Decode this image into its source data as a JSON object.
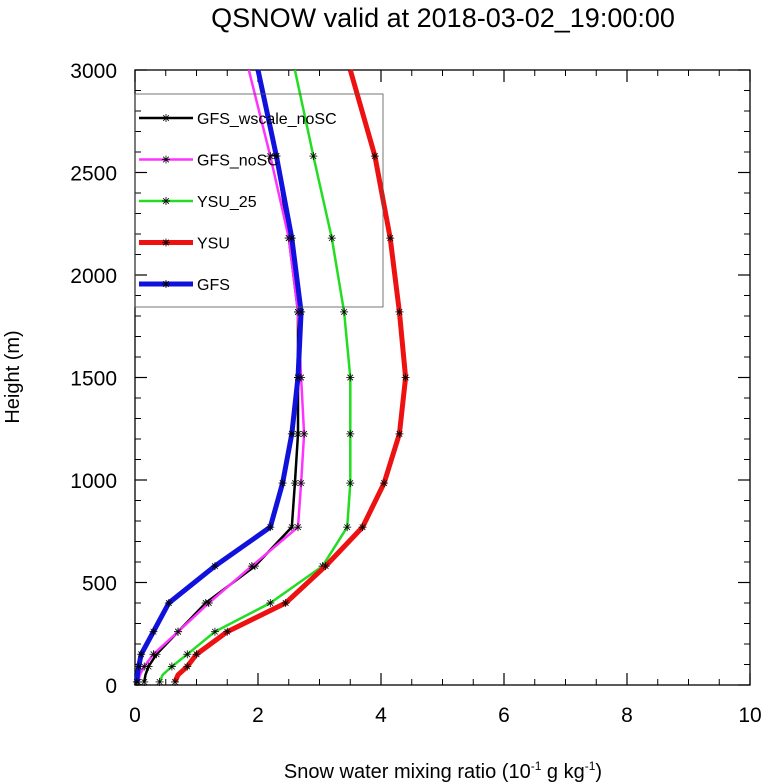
{
  "chart_data": {
    "type": "line",
    "title": "QSNOW valid at 2018-03-02_19:00:00",
    "xlabel": {
      "prefix": "Snow water mixing ratio (10",
      "exp1": "-1",
      "middle": " g kg",
      "exp2": "-1",
      "suffix": ")"
    },
    "ylabel": "Height (m)",
    "xlim": [
      0,
      10
    ],
    "ylim": [
      0,
      3000
    ],
    "x_ticks": [
      0,
      2,
      4,
      6,
      8,
      10
    ],
    "y_ticks": [
      0,
      500,
      1000,
      1500,
      2000,
      2500,
      3000
    ],
    "x_tick_labels": [
      "0",
      "2",
      "4",
      "6",
      "8",
      "10"
    ],
    "y_tick_labels": [
      "0",
      "500",
      "1000",
      "1500",
      "2000",
      "2500",
      "3000"
    ],
    "legend_position": "top-left",
    "heights": [
      15,
      50,
      90,
      150,
      260,
      400,
      580,
      770,
      985,
      1225,
      1500,
      1820,
      2180,
      2580,
      3000
    ],
    "series": [
      {
        "name": "GFS_wscale_noSC",
        "color": "#000000",
        "width": 2.5,
        "values": [
          0.15,
          0.17,
          0.22,
          0.35,
          0.7,
          1.15,
          1.95,
          2.55,
          2.6,
          2.65,
          2.65,
          2.65,
          2.5,
          2.3,
          2.0
        ]
      },
      {
        "name": "GFS_noSC",
        "color": "#ff33ff",
        "width": 2.5,
        "values": [
          0.05,
          0.08,
          0.15,
          0.3,
          0.7,
          1.2,
          1.9,
          2.65,
          2.7,
          2.75,
          2.7,
          2.65,
          2.5,
          2.2,
          1.85
        ]
      },
      {
        "name": "YSU_25",
        "color": "#22dd22",
        "width": 2.5,
        "values": [
          0.4,
          0.45,
          0.6,
          0.85,
          1.3,
          2.2,
          3.05,
          3.45,
          3.5,
          3.5,
          3.5,
          3.4,
          3.2,
          2.9,
          2.6
        ]
      },
      {
        "name": "YSU",
        "color": "#ee1111",
        "width": 5,
        "values": [
          0.65,
          0.7,
          0.85,
          1.0,
          1.5,
          2.45,
          3.1,
          3.7,
          4.05,
          4.3,
          4.4,
          4.3,
          4.15,
          3.9,
          3.5
        ]
      },
      {
        "name": "GFS",
        "color": "#1111dd",
        "width": 5,
        "values": [
          0.03,
          0.04,
          0.06,
          0.1,
          0.3,
          0.55,
          1.3,
          2.2,
          2.4,
          2.55,
          2.65,
          2.7,
          2.55,
          2.3,
          2.0
        ]
      }
    ]
  }
}
